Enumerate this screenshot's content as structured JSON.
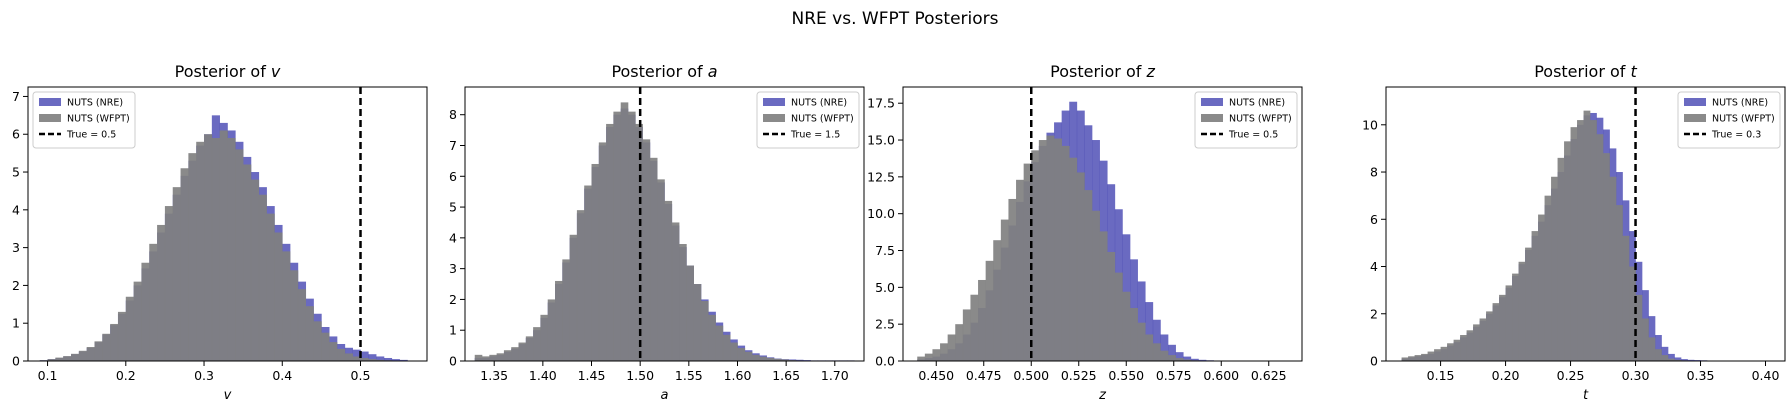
{
  "figure": {
    "suptitle": "NRE vs. WFPT Posteriors"
  },
  "colors": {
    "nre": "#4040b0",
    "wfpt": "#808080",
    "truth": "#000000"
  },
  "chart_data": [
    {
      "type": "histogram",
      "title_prefix": "Posterior of ",
      "param": "v",
      "xlabel": "v",
      "xlim": [
        0.075,
        0.585
      ],
      "ylim": [
        0,
        7.25
      ],
      "xticks": [
        0.1,
        0.2,
        0.3,
        0.4,
        0.5
      ],
      "yticks": [
        0,
        1,
        2,
        3,
        4,
        5,
        6,
        7
      ],
      "ytick_decimals": 0,
      "xtick_decimals": 1,
      "true_value": 0.5,
      "legend": {
        "position": "top-left",
        "entries": [
          "NUTS (NRE)",
          "NUTS (WFPT)",
          "True = 0.5"
        ]
      },
      "bins_start": 0.09,
      "bin_width": 0.01,
      "series": [
        {
          "name": "NUTS (NRE)",
          "values": [
            0.02,
            0.05,
            0.08,
            0.12,
            0.18,
            0.25,
            0.35,
            0.5,
            0.7,
            0.95,
            1.25,
            1.6,
            2.0,
            2.45,
            2.9,
            3.4,
            3.9,
            4.4,
            4.9,
            5.3,
            5.7,
            6.0,
            6.5,
            6.3,
            6.1,
            5.8,
            5.4,
            5.0,
            4.6,
            4.1,
            3.6,
            3.1,
            2.6,
            2.1,
            1.65,
            1.25,
            0.9,
            0.65,
            0.45,
            0.35,
            0.3,
            0.25,
            0.18,
            0.12,
            0.08,
            0.05,
            0.03
          ]
        },
        {
          "name": "NUTS (WFPT)",
          "values": [
            0.02,
            0.05,
            0.09,
            0.13,
            0.19,
            0.27,
            0.37,
            0.52,
            0.72,
            0.98,
            1.3,
            1.7,
            2.1,
            2.6,
            3.1,
            3.6,
            4.1,
            4.6,
            5.1,
            5.5,
            5.8,
            6.0,
            5.9,
            6.1,
            5.9,
            5.6,
            5.2,
            4.8,
            4.4,
            3.9,
            3.4,
            2.9,
            2.4,
            1.9,
            1.45,
            1.05,
            0.75,
            0.5,
            0.32,
            0.2,
            0.12,
            0.08,
            0.05,
            0.03,
            0.02,
            0.01,
            0.01
          ]
        }
      ]
    },
    {
      "type": "histogram",
      "title_prefix": "Posterior of ",
      "param": "a",
      "xlabel": "a",
      "xlim": [
        1.32,
        1.73
      ],
      "ylim": [
        0,
        8.9
      ],
      "xticks": [
        1.35,
        1.4,
        1.45,
        1.5,
        1.55,
        1.6,
        1.65,
        1.7
      ],
      "yticks": [
        0,
        1,
        2,
        3,
        4,
        5,
        6,
        7,
        8
      ],
      "ytick_decimals": 0,
      "xtick_decimals": 2,
      "true_value": 1.5,
      "legend": {
        "position": "top-right",
        "entries": [
          "NUTS (NRE)",
          "NUTS (WFPT)",
          "True = 1.5"
        ]
      },
      "bins_start": 1.33,
      "bin_width": 0.0075,
      "series": [
        {
          "name": "NUTS (NRE)",
          "values": [
            0.1,
            0.1,
            0.15,
            0.2,
            0.3,
            0.4,
            0.55,
            0.75,
            1.0,
            1.4,
            1.9,
            2.5,
            3.2,
            4.0,
            4.8,
            5.6,
            6.3,
            7.0,
            7.6,
            8.0,
            8.2,
            8.0,
            7.6,
            7.1,
            6.5,
            5.8,
            5.1,
            4.4,
            3.7,
            3.1,
            2.5,
            2.0,
            1.6,
            1.25,
            0.95,
            0.7,
            0.5,
            0.35,
            0.25,
            0.18,
            0.12,
            0.08,
            0.06,
            0.05,
            0.04,
            0.03,
            0.02,
            0.02,
            0.02,
            0.02,
            0.02,
            0.02
          ]
        },
        {
          "name": "NUTS (WFPT)",
          "values": [
            0.2,
            0.15,
            0.2,
            0.25,
            0.35,
            0.45,
            0.6,
            0.8,
            1.1,
            1.5,
            2.0,
            2.6,
            3.3,
            4.1,
            4.9,
            5.7,
            6.4,
            7.1,
            7.7,
            8.1,
            8.4,
            8.1,
            7.7,
            7.2,
            6.6,
            5.9,
            5.2,
            4.5,
            3.8,
            3.1,
            2.5,
            1.95,
            1.5,
            1.15,
            0.85,
            0.6,
            0.42,
            0.3,
            0.2,
            0.14,
            0.1,
            0.07,
            0.05,
            0.03,
            0.02,
            0.01,
            0.01,
            0.01,
            0.0,
            0.0,
            0.0,
            0.0
          ]
        }
      ]
    },
    {
      "type": "histogram",
      "title_prefix": "Posterior of ",
      "param": "z",
      "xlabel": "z",
      "xlim": [
        0.4325,
        0.6425
      ],
      "ylim": [
        0,
        18.6
      ],
      "xticks": [
        0.45,
        0.475,
        0.5,
        0.525,
        0.55,
        0.575,
        0.6,
        0.625
      ],
      "yticks": [
        0,
        2.5,
        5.0,
        7.5,
        10.0,
        12.5,
        15.0,
        17.5
      ],
      "ytick_decimals": 1,
      "xtick_decimals": 3,
      "true_value": 0.5,
      "legend": {
        "position": "top-right",
        "entries": [
          "NUTS (NRE)",
          "NUTS (WFPT)",
          "True = 0.5"
        ]
      },
      "bins_start": 0.44,
      "bin_width": 0.004,
      "series": [
        {
          "name": "NUTS (NRE)",
          "values": [
            0.1,
            0.2,
            0.3,
            0.5,
            0.8,
            1.2,
            1.8,
            2.6,
            3.6,
            4.8,
            6.2,
            7.7,
            9.2,
            10.8,
            12.2,
            13.5,
            14.6,
            15.5,
            16.2,
            17.0,
            17.6,
            17.0,
            16.0,
            15.0,
            13.6,
            12.0,
            10.3,
            8.6,
            6.9,
            5.4,
            4.0,
            2.8,
            1.8,
            1.1,
            0.6,
            0.3,
            0.15,
            0.08,
            0.05,
            0.03,
            0.02,
            0.02,
            0.02,
            0.02,
            0.02,
            0.02,
            0.02,
            0.02,
            0.02,
            0.02
          ]
        },
        {
          "name": "NUTS (WFPT)",
          "values": [
            0.3,
            0.5,
            0.8,
            1.2,
            1.8,
            2.5,
            3.5,
            4.5,
            5.5,
            6.8,
            8.2,
            9.6,
            11.0,
            12.3,
            13.4,
            14.3,
            15.0,
            15.3,
            15.1,
            14.6,
            13.8,
            12.8,
            11.6,
            10.2,
            8.8,
            7.4,
            6.0,
            4.7,
            3.6,
            2.6,
            1.8,
            1.2,
            0.7,
            0.4,
            0.2,
            0.1,
            0.05,
            0.03,
            0.02,
            0.01,
            0.01,
            0.01,
            0.0,
            0.0,
            0.0,
            0.0,
            0.0,
            0.0,
            0.0,
            0.0
          ]
        }
      ]
    },
    {
      "type": "histogram",
      "title_prefix": "Posterior of ",
      "param": "t",
      "xlabel": "t",
      "xlim": [
        0.108,
        0.415
      ],
      "ylim": [
        0,
        11.6
      ],
      "xticks": [
        0.15,
        0.2,
        0.25,
        0.3,
        0.35,
        0.4
      ],
      "yticks": [
        0,
        2,
        4,
        6,
        8,
        10
      ],
      "ytick_decimals": 0,
      "xtick_decimals": 2,
      "true_value": 0.3,
      "legend": {
        "position": "top-right",
        "entries": [
          "NUTS (NRE)",
          "NUTS (WFPT)",
          "True = 0.3"
        ]
      },
      "bins_start": 0.12,
      "bin_width": 0.005,
      "series": [
        {
          "name": "NUTS (NRE)",
          "values": [
            0.1,
            0.15,
            0.2,
            0.25,
            0.3,
            0.4,
            0.5,
            0.65,
            0.8,
            1.0,
            1.2,
            1.45,
            1.7,
            2.0,
            2.35,
            2.7,
            3.1,
            3.6,
            4.1,
            4.7,
            5.3,
            5.9,
            6.6,
            7.3,
            8.0,
            8.7,
            9.4,
            10.0,
            10.4,
            10.5,
            10.3,
            9.8,
            9.0,
            8.0,
            6.8,
            5.5,
            4.2,
            3.0,
            1.9,
            1.1,
            0.6,
            0.3,
            0.15,
            0.08,
            0.05,
            0.04,
            0.03,
            0.02,
            0.02,
            0.02,
            0.02,
            0.02,
            0.02,
            0.02,
            0.02,
            0.02,
            0.02,
            0.02,
            0.02
          ]
        },
        {
          "name": "NUTS (WFPT)",
          "values": [
            0.15,
            0.2,
            0.25,
            0.3,
            0.4,
            0.5,
            0.6,
            0.75,
            0.9,
            1.1,
            1.3,
            1.55,
            1.8,
            2.1,
            2.45,
            2.8,
            3.2,
            3.7,
            4.2,
            4.8,
            5.5,
            6.2,
            7.0,
            7.8,
            8.6,
            9.3,
            9.9,
            10.2,
            10.6,
            10.2,
            9.6,
            8.8,
            7.8,
            6.6,
            5.3,
            4.0,
            2.8,
            1.8,
            1.0,
            0.5,
            0.25,
            0.1,
            0.05,
            0.03,
            0.02,
            0.02,
            0.02,
            0.02,
            0.02,
            0.02,
            0.02,
            0.02,
            0.02,
            0.02,
            0.02,
            0.02,
            0.02,
            0.02,
            0.02
          ]
        }
      ]
    }
  ]
}
